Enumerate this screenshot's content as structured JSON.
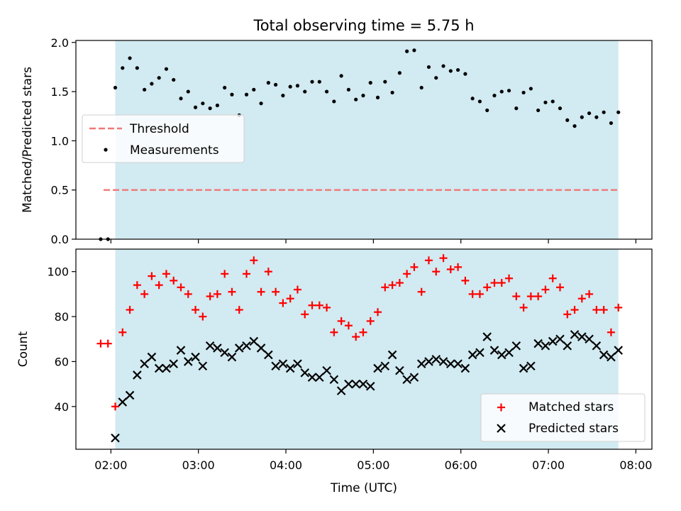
{
  "title": "Total observing time = 5.75 h",
  "chart_data": [
    {
      "type": "scatter",
      "panel": "top",
      "ylabel": "Matched/Predicted stars",
      "ylim": [
        0.0,
        2.02
      ],
      "yticks": [
        0.0,
        0.5,
        1.0,
        1.5,
        2.0
      ],
      "ytick_labels": [
        "0.0",
        "0.5",
        "1.0",
        "1.5",
        "2.0"
      ],
      "threshold": {
        "name": "Threshold",
        "value": 0.5,
        "x_start": "01:55",
        "x_end": "07:48",
        "color": "#f07878"
      },
      "series": [
        {
          "name": "Measurements",
          "marker": "dot",
          "color": "#000000",
          "points": [
            [
              "01:53",
              0.0
            ],
            [
              "01:58",
              0.0
            ],
            [
              "02:03",
              1.54
            ],
            [
              "02:08",
              1.74
            ],
            [
              "02:13",
              1.84
            ],
            [
              "02:18",
              1.74
            ],
            [
              "02:23",
              1.52
            ],
            [
              "02:28",
              1.58
            ],
            [
              "02:33",
              1.64
            ],
            [
              "02:38",
              1.73
            ],
            [
              "02:43",
              1.62
            ],
            [
              "02:48",
              1.43
            ],
            [
              "02:53",
              1.5
            ],
            [
              "02:58",
              1.34
            ],
            [
              "03:03",
              1.38
            ],
            [
              "03:08",
              1.33
            ],
            [
              "03:13",
              1.36
            ],
            [
              "03:18",
              1.54
            ],
            [
              "03:23",
              1.47
            ],
            [
              "03:28",
              1.26
            ],
            [
              "03:33",
              1.47
            ],
            [
              "03:38",
              1.52
            ],
            [
              "03:43",
              1.38
            ],
            [
              "03:48",
              1.59
            ],
            [
              "03:53",
              1.57
            ],
            [
              "03:58",
              1.46
            ],
            [
              "04:03",
              1.55
            ],
            [
              "04:08",
              1.56
            ],
            [
              "04:13",
              1.5
            ],
            [
              "04:18",
              1.6
            ],
            [
              "04:23",
              1.6
            ],
            [
              "04:28",
              1.5
            ],
            [
              "04:33",
              1.4
            ],
            [
              "04:38",
              1.66
            ],
            [
              "04:43",
              1.52
            ],
            [
              "04:48",
              1.42
            ],
            [
              "04:53",
              1.46
            ],
            [
              "04:58",
              1.59
            ],
            [
              "05:03",
              1.44
            ],
            [
              "05:08",
              1.6
            ],
            [
              "05:13",
              1.49
            ],
            [
              "05:18",
              1.69
            ],
            [
              "05:23",
              1.91
            ],
            [
              "05:28",
              1.92
            ],
            [
              "05:33",
              1.54
            ],
            [
              "05:38",
              1.75
            ],
            [
              "05:43",
              1.64
            ],
            [
              "05:48",
              1.76
            ],
            [
              "05:53",
              1.71
            ],
            [
              "05:58",
              1.72
            ],
            [
              "06:03",
              1.68
            ],
            [
              "06:08",
              1.43
            ],
            [
              "06:13",
              1.4
            ],
            [
              "06:18",
              1.31
            ],
            [
              "06:23",
              1.46
            ],
            [
              "06:28",
              1.5
            ],
            [
              "06:33",
              1.51
            ],
            [
              "06:38",
              1.33
            ],
            [
              "06:43",
              1.49
            ],
            [
              "06:48",
              1.53
            ],
            [
              "06:53",
              1.31
            ],
            [
              "06:58",
              1.39
            ],
            [
              "07:03",
              1.4
            ],
            [
              "07:08",
              1.33
            ],
            [
              "07:13",
              1.21
            ],
            [
              "07:18",
              1.15
            ],
            [
              "07:23",
              1.24
            ],
            [
              "07:28",
              1.28
            ],
            [
              "07:33",
              1.24
            ],
            [
              "07:38",
              1.29
            ],
            [
              "07:43",
              1.18
            ],
            [
              "07:48",
              1.29
            ]
          ]
        }
      ],
      "legend": {
        "placement": "center-left",
        "entries": [
          "Threshold",
          "Measurements"
        ]
      }
    },
    {
      "type": "scatter",
      "panel": "bottom",
      "xlabel": "Time (UTC)",
      "ylabel": "Count",
      "ylim": [
        21,
        110
      ],
      "yticks": [
        40,
        60,
        80,
        100
      ],
      "ytick_labels": [
        "40",
        "60",
        "80",
        "100"
      ],
      "xlim": [
        "01:36",
        "08:11"
      ],
      "xticks": [
        "02:00",
        "03:00",
        "04:00",
        "05:00",
        "06:00",
        "07:00",
        "08:00"
      ],
      "xtick_labels": [
        "02:00",
        "03:00",
        "04:00",
        "05:00",
        "06:00",
        "07:00",
        "08:00"
      ],
      "series": [
        {
          "name": "Matched stars",
          "marker": "plus",
          "color": "#ff0000",
          "points": [
            [
              "01:53",
              68
            ],
            [
              "01:58",
              68
            ],
            [
              "02:03",
              40
            ],
            [
              "02:08",
              73
            ],
            [
              "02:13",
              83
            ],
            [
              "02:18",
              94
            ],
            [
              "02:23",
              90
            ],
            [
              "02:28",
              98
            ],
            [
              "02:33",
              94
            ],
            [
              "02:38",
              99
            ],
            [
              "02:43",
              96
            ],
            [
              "02:48",
              93
            ],
            [
              "02:53",
              90
            ],
            [
              "02:58",
              83
            ],
            [
              "03:03",
              80
            ],
            [
              "03:08",
              89
            ],
            [
              "03:13",
              90
            ],
            [
              "03:18",
              99
            ],
            [
              "03:23",
              91
            ],
            [
              "03:28",
              83
            ],
            [
              "03:33",
              99
            ],
            [
              "03:38",
              105
            ],
            [
              "03:43",
              91
            ],
            [
              "03:48",
              100
            ],
            [
              "03:53",
              91
            ],
            [
              "03:58",
              86
            ],
            [
              "04:03",
              88
            ],
            [
              "04:08",
              92
            ],
            [
              "04:13",
              81
            ],
            [
              "04:18",
              85
            ],
            [
              "04:23",
              85
            ],
            [
              "04:28",
              84
            ],
            [
              "04:33",
              73
            ],
            [
              "04:38",
              78
            ],
            [
              "04:43",
              76
            ],
            [
              "04:48",
              71
            ],
            [
              "04:53",
              73
            ],
            [
              "04:58",
              78
            ],
            [
              "05:03",
              82
            ],
            [
              "05:08",
              93
            ],
            [
              "05:13",
              94
            ],
            [
              "05:18",
              95
            ],
            [
              "05:23",
              99
            ],
            [
              "05:28",
              102
            ],
            [
              "05:33",
              91
            ],
            [
              "05:38",
              105
            ],
            [
              "05:43",
              100
            ],
            [
              "05:48",
              106
            ],
            [
              "05:53",
              101
            ],
            [
              "05:58",
              102
            ],
            [
              "06:03",
              96
            ],
            [
              "06:08",
              90
            ],
            [
              "06:13",
              90
            ],
            [
              "06:18",
              93
            ],
            [
              "06:23",
              95
            ],
            [
              "06:28",
              95
            ],
            [
              "06:33",
              97
            ],
            [
              "06:38",
              89
            ],
            [
              "06:43",
              84
            ],
            [
              "06:48",
              89
            ],
            [
              "06:53",
              89
            ],
            [
              "06:58",
              92
            ],
            [
              "07:03",
              97
            ],
            [
              "07:08",
              93
            ],
            [
              "07:13",
              81
            ],
            [
              "07:18",
              83
            ],
            [
              "07:23",
              88
            ],
            [
              "07:28",
              90
            ],
            [
              "07:33",
              83
            ],
            [
              "07:38",
              83
            ],
            [
              "07:43",
              73
            ],
            [
              "07:48",
              84
            ]
          ]
        },
        {
          "name": "Predicted stars",
          "marker": "cross",
          "color": "#000000",
          "points": [
            [
              "02:03",
              26
            ],
            [
              "02:08",
              42
            ],
            [
              "02:13",
              45
            ],
            [
              "02:18",
              54
            ],
            [
              "02:23",
              59
            ],
            [
              "02:28",
              62
            ],
            [
              "02:33",
              57
            ],
            [
              "02:38",
              57
            ],
            [
              "02:43",
              59
            ],
            [
              "02:48",
              65
            ],
            [
              "02:53",
              60
            ],
            [
              "02:58",
              62
            ],
            [
              "03:03",
              58
            ],
            [
              "03:08",
              67
            ],
            [
              "03:13",
              66
            ],
            [
              "03:18",
              64
            ],
            [
              "03:23",
              62
            ],
            [
              "03:28",
              66
            ],
            [
              "03:33",
              67
            ],
            [
              "03:38",
              69
            ],
            [
              "03:43",
              66
            ],
            [
              "03:48",
              63
            ],
            [
              "03:53",
              58
            ],
            [
              "03:58",
              59
            ],
            [
              "04:03",
              57
            ],
            [
              "04:08",
              59
            ],
            [
              "04:13",
              55
            ],
            [
              "04:18",
              53
            ],
            [
              "04:23",
              53
            ],
            [
              "04:28",
              56
            ],
            [
              "04:33",
              52
            ],
            [
              "04:38",
              47
            ],
            [
              "04:43",
              50
            ],
            [
              "04:48",
              50
            ],
            [
              "04:53",
              50
            ],
            [
              "04:58",
              49
            ],
            [
              "05:03",
              57
            ],
            [
              "05:08",
              58
            ],
            [
              "05:13",
              63
            ],
            [
              "05:18",
              56
            ],
            [
              "05:23",
              52
            ],
            [
              "05:28",
              53
            ],
            [
              "05:33",
              59
            ],
            [
              "05:38",
              60
            ],
            [
              "05:43",
              61
            ],
            [
              "05:48",
              60
            ],
            [
              "05:53",
              59
            ],
            [
              "05:58",
              59
            ],
            [
              "06:03",
              57
            ],
            [
              "06:08",
              63
            ],
            [
              "06:13",
              64
            ],
            [
              "06:18",
              71
            ],
            [
              "06:23",
              65
            ],
            [
              "06:28",
              63
            ],
            [
              "06:33",
              64
            ],
            [
              "06:38",
              67
            ],
            [
              "06:43",
              57
            ],
            [
              "06:48",
              58
            ],
            [
              "06:53",
              68
            ],
            [
              "06:58",
              67
            ],
            [
              "07:03",
              69
            ],
            [
              "07:08",
              70
            ],
            [
              "07:13",
              67
            ],
            [
              "07:18",
              72
            ],
            [
              "07:23",
              71
            ],
            [
              "07:28",
              70
            ],
            [
              "07:33",
              67
            ],
            [
              "07:38",
              63
            ],
            [
              "07:43",
              62
            ],
            [
              "07:48",
              65
            ]
          ]
        }
      ],
      "legend": {
        "placement": "lower-right",
        "entries": [
          "Matched stars",
          "Predicted stars"
        ]
      }
    }
  ],
  "observing_window": {
    "start": "02:03",
    "end": "07:48",
    "color": "#add8e6"
  }
}
